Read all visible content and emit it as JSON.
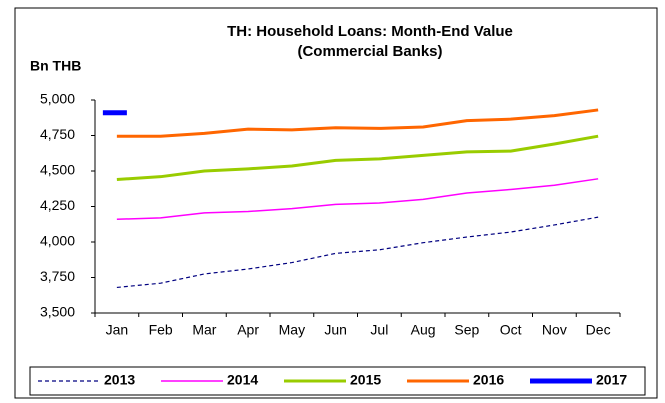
{
  "chart_data": {
    "type": "line",
    "title": "TH: Household Loans: Month-End Value",
    "subtitle": "(Commercial Banks)",
    "y_label": "Bn THB",
    "categories": [
      "Jan",
      "Feb",
      "Mar",
      "Apr",
      "May",
      "Jun",
      "Jul",
      "Aug",
      "Sep",
      "Oct",
      "Nov",
      "Dec"
    ],
    "ylim": [
      3500,
      5000
    ],
    "yticks": [
      {
        "value": 3500,
        "label": "3,500"
      },
      {
        "value": 3750,
        "label": "3,750"
      },
      {
        "value": 4000,
        "label": "4,000"
      },
      {
        "value": 4250,
        "label": "4,250"
      },
      {
        "value": 4500,
        "label": "4,500"
      },
      {
        "value": 4750,
        "label": "4,750"
      },
      {
        "value": 5000,
        "label": "5,000"
      }
    ],
    "grid": false,
    "legend": "bottom",
    "series": [
      {
        "name": "2013",
        "color": "#000080",
        "line_width": 1.2,
        "dashed": true,
        "values": [
          3680,
          3710,
          3775,
          3810,
          3855,
          3920,
          3945,
          3995,
          4035,
          4070,
          4120,
          4175
        ]
      },
      {
        "name": "2014",
        "color": "#ff00ff",
        "line_width": 1.5,
        "dashed": false,
        "values": [
          4160,
          4170,
          4205,
          4215,
          4235,
          4265,
          4275,
          4300,
          4345,
          4370,
          4400,
          4445
        ]
      },
      {
        "name": "2015",
        "color": "#99cc00",
        "line_width": 3,
        "dashed": false,
        "values": [
          4440,
          4460,
          4500,
          4515,
          4535,
          4575,
          4585,
          4610,
          4635,
          4640,
          4690,
          4745
        ]
      },
      {
        "name": "2016",
        "color": "#ff6600",
        "line_width": 3,
        "dashed": false,
        "values": [
          4745,
          4745,
          4765,
          4795,
          4790,
          4805,
          4800,
          4810,
          4855,
          4865,
          4890,
          4930
        ]
      },
      {
        "name": "2017",
        "color": "#0000ff",
        "line_width": 5,
        "dashed": false,
        "values": [
          4910,
          null,
          null,
          null,
          null,
          null,
          null,
          null,
          null,
          null,
          null,
          null
        ]
      }
    ]
  }
}
